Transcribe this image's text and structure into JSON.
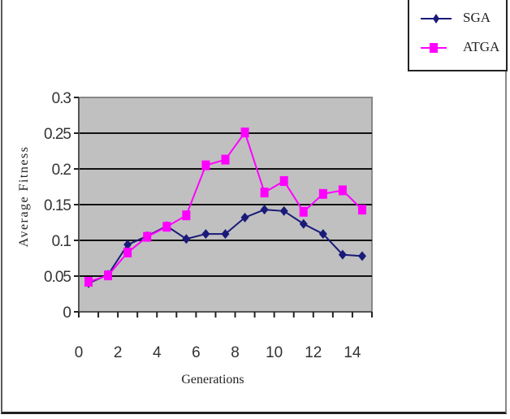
{
  "chart_data": {
    "type": "line",
    "title": "",
    "xlabel": "Generations",
    "ylabel": "Average Fitness",
    "x": [
      0.5,
      1.5,
      2.5,
      3.5,
      4.5,
      5.5,
      6.5,
      7.5,
      8.5,
      9.5,
      10.5,
      11.5,
      12.5,
      13.5,
      14.5
    ],
    "series": [
      {
        "name": "SGA",
        "color": "#1a1a7a",
        "marker": "diamond",
        "values": [
          0.04,
          0.052,
          0.094,
          0.106,
          0.12,
          0.102,
          0.109,
          0.109,
          0.132,
          0.143,
          0.141,
          0.123,
          0.109,
          0.08,
          0.078
        ]
      },
      {
        "name": "ATGA",
        "color": "#ff00ff",
        "marker": "square",
        "values": [
          0.042,
          0.051,
          0.083,
          0.105,
          0.119,
          0.135,
          0.205,
          0.213,
          0.251,
          0.167,
          0.183,
          0.14,
          0.165,
          0.17,
          0.143
        ]
      }
    ],
    "xticks": [
      "0",
      "2",
      "4",
      "6",
      "8",
      "10",
      "12",
      "14"
    ],
    "yticks": [
      "0",
      "0.05",
      "0.1",
      "0.15",
      "0.2",
      "0.25",
      "0.3"
    ],
    "xlim": [
      0,
      15
    ],
    "ylim": [
      0,
      0.3
    ],
    "grid": "horizontal",
    "plot_background": "#c0c0c0",
    "legend_position": "top-right"
  },
  "legend": {
    "items": [
      {
        "label": "SGA"
      },
      {
        "label": "ATGA"
      }
    ]
  }
}
